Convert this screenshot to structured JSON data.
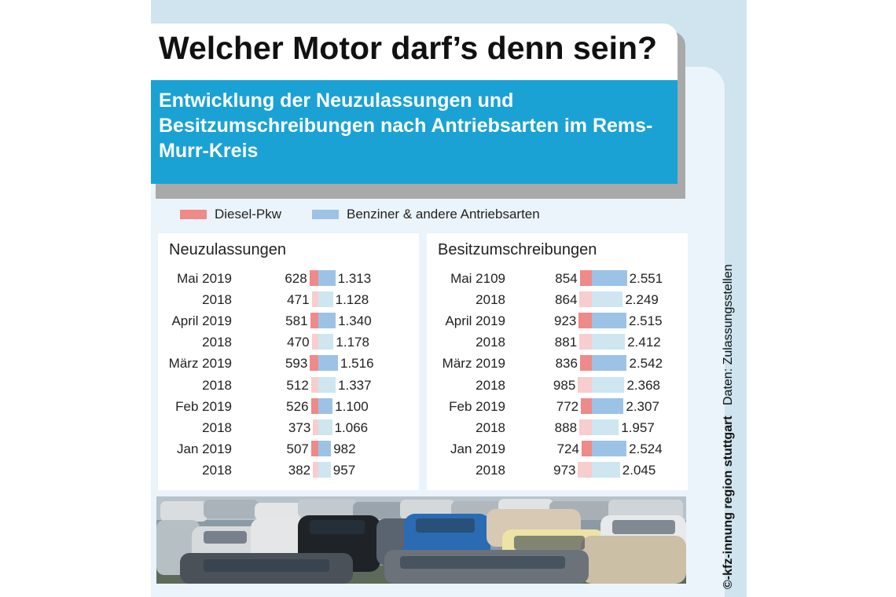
{
  "header": {
    "title": "Welcher Motor darf’s denn sein?",
    "subtitle": "Entwicklung der Neuzulassungen und Besitzumschreibungen nach Antriebsarten im Rems-Murr-Kreis"
  },
  "legend": {
    "diesel": "Diesel-Pkw",
    "benziner": "Benziner & andere Antriebsarten"
  },
  "colors": {
    "diesel_strong": "#ee8a88",
    "diesel_light": "#f8cdcd",
    "benziner_strong": "#9cc3e6",
    "benziner_light": "#cde6f0"
  },
  "credit": {
    "brand": "©-kfz-innung region stuttgart",
    "source": "Daten: Zulassungsstellen"
  },
  "chart_data": [
    {
      "type": "bar",
      "title": "Neuzulassungen",
      "categories": [
        "Mai 2019",
        "2018",
        "April 2019",
        "2018",
        "März 2019",
        "2018",
        "Feb 2019",
        "2018",
        "Jan 2019",
        "2018"
      ],
      "series": [
        {
          "name": "Diesel-Pkw",
          "values": [
            628,
            471,
            581,
            470,
            593,
            512,
            526,
            373,
            507,
            382
          ],
          "labels": [
            "628",
            "471",
            "581",
            "470",
            "593",
            "512",
            "526",
            "373",
            "507",
            "382"
          ]
        },
        {
          "name": "Benziner & andere Antriebsarten",
          "values": [
            1313,
            1128,
            1340,
            1178,
            1516,
            1337,
            1100,
            1066,
            982,
            957
          ],
          "labels": [
            "1.313",
            "1.128",
            "1.340",
            "1.178",
            "1.516",
            "1.337",
            "1.100",
            "1.066",
            "982",
            "957"
          ]
        }
      ]
    },
    {
      "type": "bar",
      "title": "Besitzumschreibungen",
      "categories": [
        "Mai 2109",
        "2018",
        "April 2019",
        "2018",
        "März 2019",
        "2018",
        "Feb 2019",
        "2018",
        "Jan 2019",
        "2018"
      ],
      "series": [
        {
          "name": "Diesel-Pkw",
          "values": [
            854,
            864,
            923,
            881,
            836,
            985,
            772,
            888,
            724,
            973
          ],
          "labels": [
            "854",
            "864",
            "923",
            "881",
            "836",
            "985",
            "772",
            "888",
            "724",
            "973"
          ]
        },
        {
          "name": "Benziner & andere Antriebsarten",
          "values": [
            2551,
            2249,
            2515,
            2412,
            2542,
            2368,
            2307,
            1957,
            2524,
            2045
          ],
          "labels": [
            "2.551",
            "2.249",
            "2.515",
            "2.412",
            "2.542",
            "2.368",
            "2.307",
            "1.957",
            "2.524",
            "2.045"
          ]
        }
      ]
    }
  ]
}
